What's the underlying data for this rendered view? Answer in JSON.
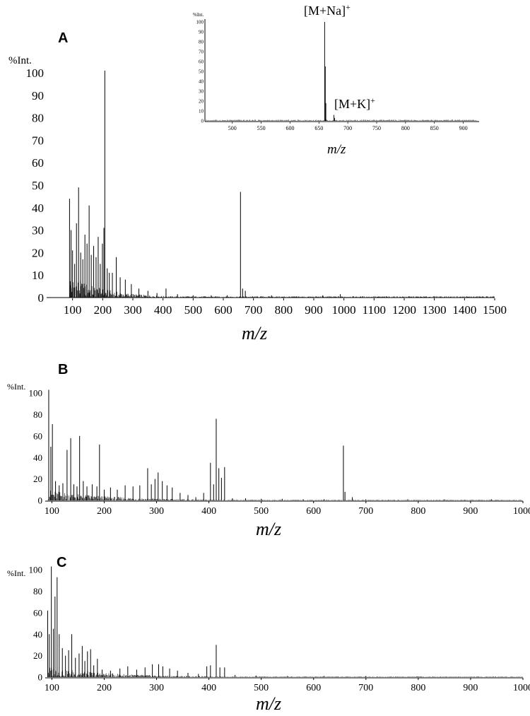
{
  "chart_data": [
    {
      "type": "line",
      "panel": "A",
      "ylabel": "%Int.",
      "xlabel": "m/z",
      "x_ticks": [
        "100",
        "200",
        "300",
        "400",
        "500",
        "600",
        "700",
        "800",
        "900",
        "1000",
        "1100",
        "1200",
        "1300",
        "1400",
        "1500"
      ],
      "y_ticks": [
        "0",
        "10",
        "20",
        "30",
        "40",
        "50",
        "60",
        "70",
        "80",
        "90",
        "100"
      ],
      "xlim": [
        0,
        1500
      ],
      "ylim": [
        0,
        100
      ],
      "peaks": [
        {
          "x": 90,
          "y": 44
        },
        {
          "x": 95,
          "y": 30
        },
        {
          "x": 100,
          "y": 21
        },
        {
          "x": 107,
          "y": 15
        },
        {
          "x": 113,
          "y": 33
        },
        {
          "x": 120,
          "y": 49
        },
        {
          "x": 127,
          "y": 20
        },
        {
          "x": 134,
          "y": 17
        },
        {
          "x": 141,
          "y": 28
        },
        {
          "x": 148,
          "y": 24
        },
        {
          "x": 155,
          "y": 41
        },
        {
          "x": 162,
          "y": 19
        },
        {
          "x": 170,
          "y": 23
        },
        {
          "x": 178,
          "y": 18
        },
        {
          "x": 185,
          "y": 27
        },
        {
          "x": 192,
          "y": 15
        },
        {
          "x": 199,
          "y": 24
        },
        {
          "x": 204,
          "y": 31
        },
        {
          "x": 207,
          "y": 101
        },
        {
          "x": 215,
          "y": 13
        },
        {
          "x": 222,
          "y": 11
        },
        {
          "x": 232,
          "y": 11
        },
        {
          "x": 245,
          "y": 18
        },
        {
          "x": 258,
          "y": 9
        },
        {
          "x": 275,
          "y": 8
        },
        {
          "x": 295,
          "y": 6
        },
        {
          "x": 320,
          "y": 4
        },
        {
          "x": 350,
          "y": 3
        },
        {
          "x": 380,
          "y": 2
        },
        {
          "x": 410,
          "y": 4
        },
        {
          "x": 448,
          "y": 1.5
        },
        {
          "x": 500,
          "y": 1
        },
        {
          "x": 560,
          "y": 1
        },
        {
          "x": 613,
          "y": 1
        },
        {
          "x": 657,
          "y": 47
        },
        {
          "x": 664,
          "y": 4
        },
        {
          "x": 673,
          "y": 3
        },
        {
          "x": 760,
          "y": 1
        },
        {
          "x": 930,
          "y": 1
        },
        {
          "x": 988,
          "y": 1.5
        },
        {
          "x": 1100,
          "y": 0.5
        },
        {
          "x": 1320,
          "y": 0.5
        },
        {
          "x": 1450,
          "y": 0.5
        }
      ],
      "inset": {
        "ylabel": "%Int.",
        "xlabel": "m/z",
        "x_ticks": [
          "500",
          "550",
          "600",
          "650",
          "700",
          "750",
          "800",
          "850",
          "900"
        ],
        "y_ticks": [
          "0",
          "10",
          "20",
          "30",
          "40",
          "50",
          "60",
          "70",
          "80",
          "90",
          "100"
        ],
        "xlim": [
          455,
          925
        ],
        "ylim": [
          0,
          100
        ],
        "peaks": [
          {
            "x": 660,
            "y": 100
          },
          {
            "x": 661,
            "y": 55
          },
          {
            "x": 662,
            "y": 18
          },
          {
            "x": 676,
            "y": 6
          },
          {
            "x": 677,
            "y": 3
          }
        ],
        "annotations": [
          {
            "text": "[M+Na]",
            "sup": "+",
            "x": 660
          },
          {
            "text": "[M+K]",
            "sup": "+",
            "x": 676
          }
        ]
      }
    },
    {
      "type": "line",
      "panel": "B",
      "ylabel": "%Int.",
      "xlabel": "m/z",
      "x_ticks": [
        "100",
        "200",
        "300",
        "400",
        "500",
        "600",
        "700",
        "800",
        "900",
        "1000"
      ],
      "y_ticks": [
        "0",
        "20",
        "40",
        "60",
        "80",
        "100"
      ],
      "xlim": [
        90,
        1000
      ],
      "ylim": [
        0,
        100
      ],
      "peaks": [
        {
          "x": 94,
          "y": 103
        },
        {
          "x": 98,
          "y": 50
        },
        {
          "x": 101,
          "y": 71
        },
        {
          "x": 107,
          "y": 18
        },
        {
          "x": 114,
          "y": 14
        },
        {
          "x": 121,
          "y": 16
        },
        {
          "x": 129,
          "y": 47
        },
        {
          "x": 136,
          "y": 58
        },
        {
          "x": 142,
          "y": 15
        },
        {
          "x": 148,
          "y": 13
        },
        {
          "x": 153,
          "y": 60
        },
        {
          "x": 160,
          "y": 18
        },
        {
          "x": 167,
          "y": 13
        },
        {
          "x": 177,
          "y": 15
        },
        {
          "x": 186,
          "y": 13
        },
        {
          "x": 191,
          "y": 52
        },
        {
          "x": 200,
          "y": 10
        },
        {
          "x": 212,
          "y": 12
        },
        {
          "x": 225,
          "y": 10
        },
        {
          "x": 240,
          "y": 14
        },
        {
          "x": 255,
          "y": 13
        },
        {
          "x": 268,
          "y": 14
        },
        {
          "x": 283,
          "y": 30
        },
        {
          "x": 290,
          "y": 15
        },
        {
          "x": 297,
          "y": 20
        },
        {
          "x": 303,
          "y": 26
        },
        {
          "x": 311,
          "y": 18
        },
        {
          "x": 320,
          "y": 14
        },
        {
          "x": 330,
          "y": 12
        },
        {
          "x": 345,
          "y": 7
        },
        {
          "x": 360,
          "y": 5
        },
        {
          "x": 375,
          "y": 3
        },
        {
          "x": 390,
          "y": 7
        },
        {
          "x": 403,
          "y": 35
        },
        {
          "x": 409,
          "y": 15
        },
        {
          "x": 414,
          "y": 76
        },
        {
          "x": 419,
          "y": 30
        },
        {
          "x": 424,
          "y": 21
        },
        {
          "x": 430,
          "y": 31
        },
        {
          "x": 445,
          "y": 2
        },
        {
          "x": 470,
          "y": 2
        },
        {
          "x": 500,
          "y": 1.5
        },
        {
          "x": 540,
          "y": 1.5
        },
        {
          "x": 580,
          "y": 1
        },
        {
          "x": 620,
          "y": 1
        },
        {
          "x": 657,
          "y": 51
        },
        {
          "x": 660,
          "y": 8
        },
        {
          "x": 674,
          "y": 3
        },
        {
          "x": 700,
          "y": 1
        },
        {
          "x": 780,
          "y": 1
        },
        {
          "x": 850,
          "y": 1
        },
        {
          "x": 940,
          "y": 1
        }
      ]
    },
    {
      "type": "line",
      "panel": "C",
      "ylabel": "%Int.",
      "xlabel": "m/z",
      "x_ticks": [
        "100",
        "200",
        "300",
        "400",
        "500",
        "600",
        "700",
        "800",
        "900",
        "1000"
      ],
      "y_ticks": [
        "0",
        "20",
        "40",
        "60",
        "80",
        "100"
      ],
      "xlim": [
        90,
        1000
      ],
      "ylim": [
        0,
        100
      ],
      "peaks": [
        {
          "x": 92,
          "y": 62
        },
        {
          "x": 95,
          "y": 40
        },
        {
          "x": 99,
          "y": 103
        },
        {
          "x": 103,
          "y": 45
        },
        {
          "x": 106,
          "y": 75
        },
        {
          "x": 110,
          "y": 93
        },
        {
          "x": 114,
          "y": 40
        },
        {
          "x": 120,
          "y": 27
        },
        {
          "x": 126,
          "y": 20
        },
        {
          "x": 132,
          "y": 25
        },
        {
          "x": 138,
          "y": 40
        },
        {
          "x": 145,
          "y": 18
        },
        {
          "x": 152,
          "y": 22
        },
        {
          "x": 158,
          "y": 29
        },
        {
          "x": 163,
          "y": 15
        },
        {
          "x": 168,
          "y": 24
        },
        {
          "x": 174,
          "y": 26
        },
        {
          "x": 180,
          "y": 11
        },
        {
          "x": 187,
          "y": 17
        },
        {
          "x": 196,
          "y": 7
        },
        {
          "x": 212,
          "y": 6
        },
        {
          "x": 230,
          "y": 8
        },
        {
          "x": 245,
          "y": 10
        },
        {
          "x": 262,
          "y": 7
        },
        {
          "x": 278,
          "y": 9
        },
        {
          "x": 292,
          "y": 12
        },
        {
          "x": 304,
          "y": 12
        },
        {
          "x": 312,
          "y": 10
        },
        {
          "x": 325,
          "y": 8
        },
        {
          "x": 340,
          "y": 6
        },
        {
          "x": 360,
          "y": 4
        },
        {
          "x": 380,
          "y": 3
        },
        {
          "x": 396,
          "y": 10
        },
        {
          "x": 403,
          "y": 11
        },
        {
          "x": 414,
          "y": 30
        },
        {
          "x": 421,
          "y": 9
        },
        {
          "x": 430,
          "y": 9
        },
        {
          "x": 450,
          "y": 2
        },
        {
          "x": 490,
          "y": 1.5
        },
        {
          "x": 550,
          "y": 1
        },
        {
          "x": 620,
          "y": 1
        },
        {
          "x": 700,
          "y": 1
        },
        {
          "x": 800,
          "y": 0.5
        }
      ]
    }
  ]
}
